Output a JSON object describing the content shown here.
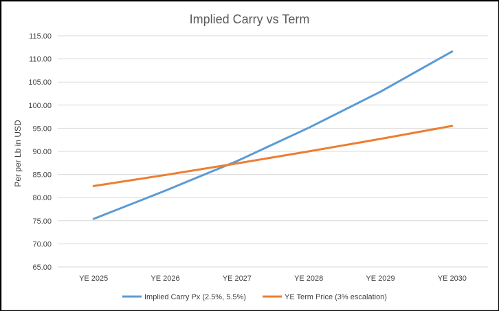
{
  "chart_data": {
    "type": "line",
    "title": "Implied Carry vs Term",
    "xlabel": "",
    "ylabel": "Per per Lb in USD",
    "categories": [
      "YE 2025",
      "YE 2026",
      "YE 2027",
      "YE 2028",
      "YE 2029",
      "YE 2030"
    ],
    "ylim": [
      65,
      115
    ],
    "y_ticks": [
      "65.00",
      "70.00",
      "75.00",
      "80.00",
      "85.00",
      "90.00",
      "95.00",
      "100.00",
      "105.00",
      "110.00",
      "115.00"
    ],
    "grid": true,
    "legend_position": "bottom",
    "series": [
      {
        "name": "Implied Carry Px (2.5%, 5.5%)",
        "color": "#5b9bd5",
        "values": [
          75.4,
          81.5,
          87.9,
          95.1,
          102.9,
          111.6
        ]
      },
      {
        "name": "YE Term Price (3% escalation)",
        "color": "#ed7d31",
        "values": [
          82.5,
          84.9,
          87.4,
          90.0,
          92.7,
          95.5
        ]
      }
    ]
  }
}
